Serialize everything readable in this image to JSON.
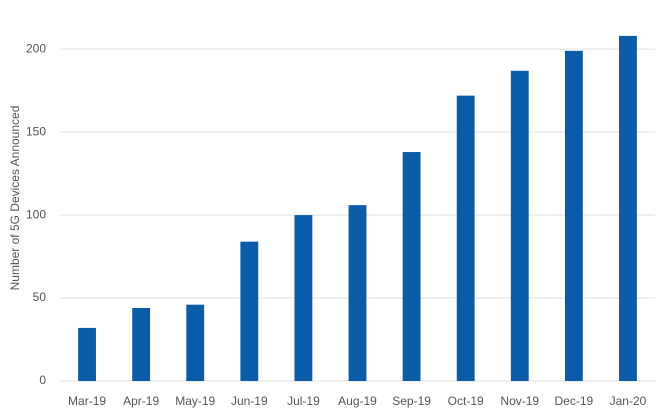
{
  "chart_data": {
    "type": "bar",
    "ylabel": "Number of 5G Devices Announced",
    "categories": [
      "Mar-19",
      "Apr-19",
      "May-19",
      "Jun-19",
      "Jul-19",
      "Aug-19",
      "Sep-19",
      "Oct-19",
      "Nov-19",
      "Dec-19",
      "Jan-20"
    ],
    "values": [
      32,
      44,
      46,
      84,
      100,
      106,
      138,
      172,
      187,
      199,
      208
    ],
    "color": "#0b5ca8",
    "ylim": [
      0,
      220
    ],
    "yticks": [
      0,
      50,
      100,
      150,
      200
    ],
    "grid": true
  }
}
